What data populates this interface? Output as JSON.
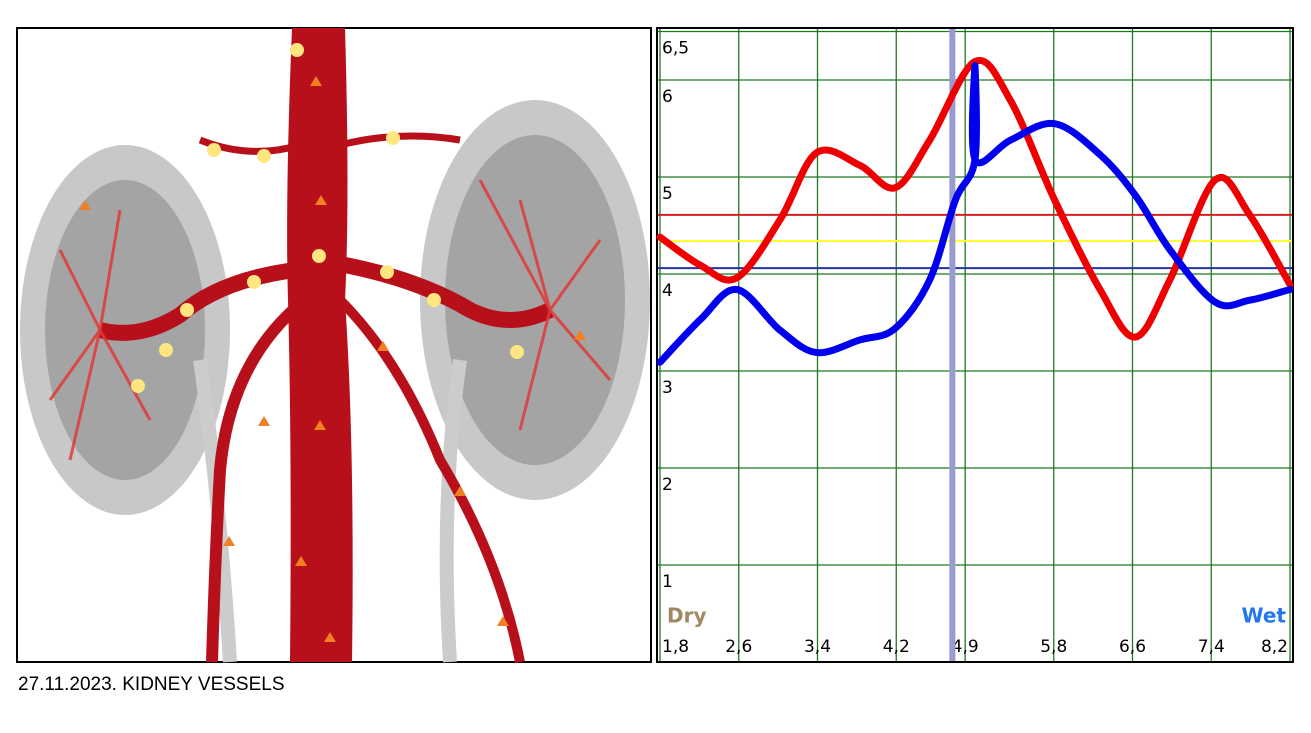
{
  "caption": "27.11.2023. KIDNEY VESSELS",
  "chart_data": {
    "type": "line",
    "dry_label": "Dry",
    "wet_label": "Wet",
    "xlim": [
      1.8,
      8.2
    ],
    "xticks": [
      {
        "value": 1.8,
        "label": "1,8"
      },
      {
        "value": 2.6,
        "label": "2,6"
      },
      {
        "value": 3.4,
        "label": "3,4"
      },
      {
        "value": 4.2,
        "label": "4,2"
      },
      {
        "value": 4.9,
        "label": "4,9"
      },
      {
        "value": 5.8,
        "label": "5,8"
      },
      {
        "value": 6.6,
        "label": "6,6"
      },
      {
        "value": 7.4,
        "label": "7,4"
      },
      {
        "value": 8.2,
        "label": "8,2"
      }
    ],
    "ylim": [
      0,
      6.5
    ],
    "yticks": [
      1,
      2,
      3,
      4,
      5,
      6,
      {
        "value": 6.5,
        "label": "6,5"
      }
    ],
    "grid": true,
    "grid_color": "#1f7a1f",
    "series": [
      {
        "color": "#ee0000",
        "x": [
          1.8,
          2.21,
          2.58,
          3.02,
          3.39,
          3.83,
          4.19,
          4.54,
          5.0,
          5.36,
          5.81,
          6.27,
          6.63,
          6.98,
          7.44,
          7.79,
          8.2
        ],
        "values": [
          4.38,
          4.09,
          3.96,
          4.56,
          5.25,
          5.12,
          4.89,
          5.38,
          6.19,
          5.79,
          4.76,
          3.84,
          3.35,
          3.94,
          4.97,
          4.61,
          3.89
        ]
      },
      {
        "color": "#0000ee",
        "x": [
          1.8,
          2.21,
          2.58,
          3.02,
          3.39,
          3.83,
          4.19,
          4.54,
          4.8,
          5.0,
          5.0,
          5.0,
          5.36,
          5.81,
          6.27,
          6.63,
          6.98,
          7.44,
          7.79,
          8.2
        ],
        "values": [
          3.09,
          3.53,
          3.84,
          3.42,
          3.19,
          3.32,
          3.44,
          3.94,
          4.76,
          5.18,
          6.15,
          5.18,
          5.38,
          5.55,
          5.23,
          4.81,
          4.25,
          3.71,
          3.73,
          3.84
        ]
      }
    ],
    "reference_lines": [
      {
        "value": 4.61,
        "color": "#d42020"
      },
      {
        "value": 4.34,
        "color": "#ffff33"
      },
      {
        "value": 4.06,
        "color": "#2233aa"
      }
    ],
    "x_markers": [
      {
        "value": 4.77,
        "color": "#9a9ad0"
      }
    ]
  }
}
